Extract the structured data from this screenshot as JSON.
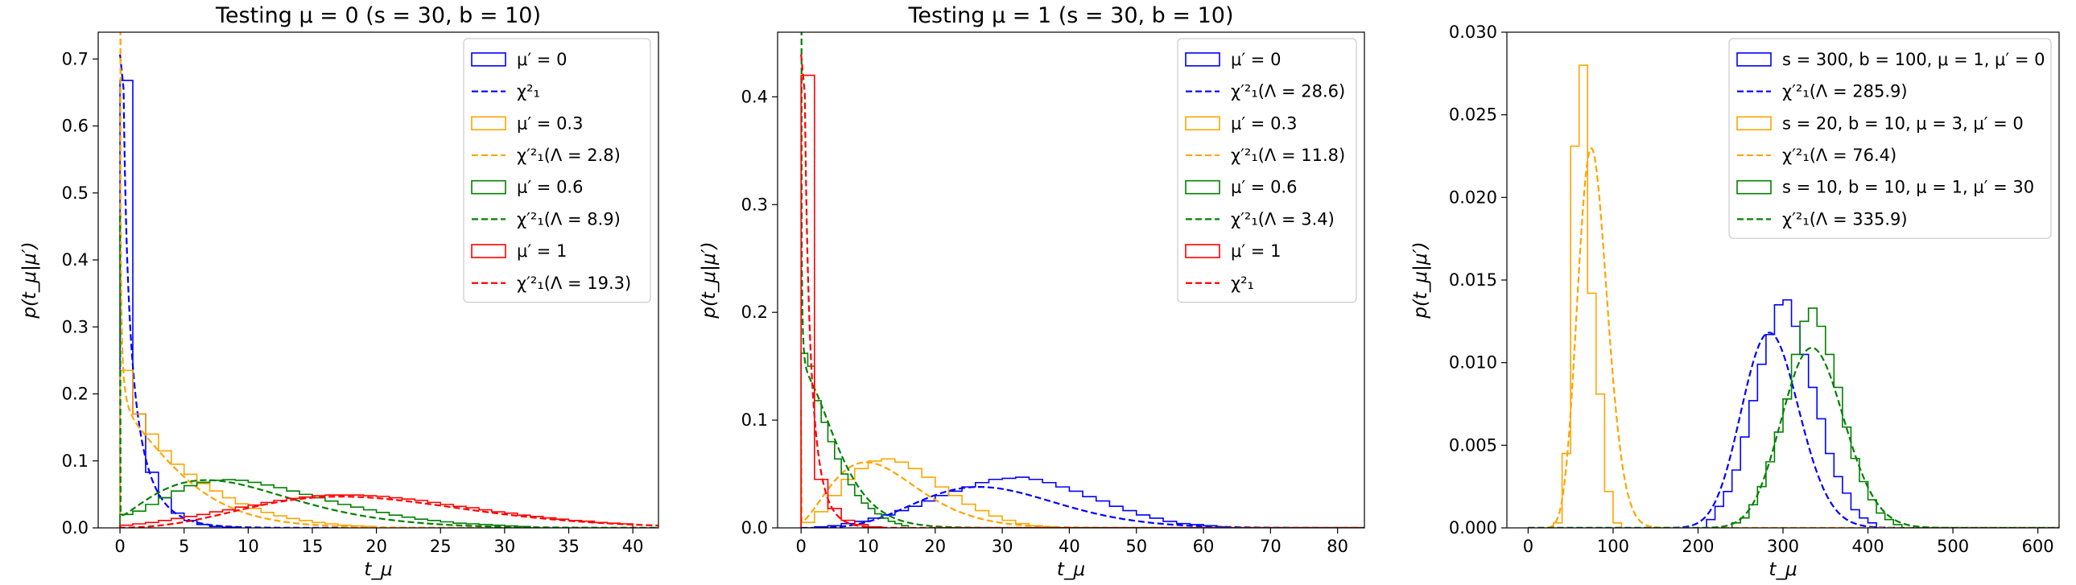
{
  "chart_data": [
    {
      "type": "line",
      "title": "Testing μ = 0 (s = 30, b = 10)",
      "xlabel": "t_μ",
      "ylabel": "p(t_μ|μ′)",
      "xlim": [
        -1.7,
        42
      ],
      "ylim": [
        0,
        0.74
      ],
      "xticks": [
        "0",
        "5",
        "10",
        "15",
        "20",
        "25",
        "30",
        "35",
        "40"
      ],
      "yticks": [
        "0.0",
        "0.1",
        "0.2",
        "0.3",
        "0.4",
        "0.5",
        "0.6",
        "0.7"
      ],
      "xtick_values": [
        0,
        5,
        10,
        15,
        20,
        25,
        30,
        35,
        40
      ],
      "ytick_values": [
        0,
        0.1,
        0.2,
        0.3,
        0.4,
        0.5,
        0.6,
        0.7
      ],
      "legend_position": "top-right",
      "series": [
        {
          "name": "μ′ = 0",
          "kind": "hist",
          "color": "#0000ff",
          "bin_start": 0,
          "bin_width": 1,
          "values": [
            0.668,
            0.17,
            0.083,
            0.045,
            0.022,
            0.011,
            0.005,
            0.002,
            0.001
          ]
        },
        {
          "name": "χ²₁",
          "kind": "curve",
          "color": "#0000ff",
          "func": "chi2",
          "lambda": 0
        },
        {
          "name": "μ′ = 0.3",
          "kind": "hist",
          "color": "#ffa500",
          "bin_start": 0,
          "bin_width": 1,
          "values": [
            0.235,
            0.17,
            0.14,
            0.115,
            0.095,
            0.08,
            0.066,
            0.055,
            0.045,
            0.036,
            0.029,
            0.023,
            0.018,
            0.014,
            0.011,
            0.008,
            0.006,
            0.004,
            0.003,
            0.002
          ]
        },
        {
          "name": "χ′²₁(Λ = 2.8)",
          "kind": "curve",
          "color": "#ffa500",
          "func": "ncchi2",
          "lambda": 2.8
        },
        {
          "name": "μ′ = 0.6",
          "kind": "hist",
          "color": "#008000",
          "bin_start": 0,
          "bin_width": 1,
          "values": [
            0.02,
            0.025,
            0.035,
            0.045,
            0.055,
            0.063,
            0.068,
            0.071,
            0.072,
            0.071,
            0.068,
            0.064,
            0.06,
            0.055,
            0.05,
            0.045,
            0.04,
            0.035,
            0.031,
            0.027,
            0.023,
            0.019,
            0.016,
            0.013,
            0.011,
            0.009,
            0.007,
            0.006,
            0.005,
            0.004,
            0.003,
            0.002
          ]
        },
        {
          "name": "χ′²₁(Λ = 8.9)",
          "kind": "curve",
          "color": "#008000",
          "func": "ncchi2",
          "lambda": 8.9
        },
        {
          "name": "μ′ = 1",
          "kind": "hist",
          "color": "#ff0000",
          "bin_start": 0,
          "bin_width": 1,
          "values": [
            0.004,
            0.006,
            0.008,
            0.011,
            0.014,
            0.017,
            0.02,
            0.024,
            0.027,
            0.031,
            0.034,
            0.038,
            0.041,
            0.044,
            0.046,
            0.048,
            0.049,
            0.049,
            0.049,
            0.048,
            0.047,
            0.045,
            0.043,
            0.041,
            0.038,
            0.035,
            0.032,
            0.03,
            0.027,
            0.024,
            0.022,
            0.019,
            0.017,
            0.015,
            0.013,
            0.011,
            0.01,
            0.008,
            0.007,
            0.006
          ]
        },
        {
          "name": "χ′²₁(Λ = 19.3)",
          "kind": "curve",
          "color": "#ff0000",
          "func": "ncchi2",
          "lambda": 19.3
        }
      ]
    },
    {
      "type": "line",
      "title": "Testing μ = 1 (s = 30, b = 10)",
      "xlabel": "t_μ",
      "ylabel": "p(t_μ|μ′)",
      "xlim": [
        -3.5,
        84
      ],
      "ylim": [
        0,
        0.46
      ],
      "xticks": [
        "0",
        "10",
        "20",
        "30",
        "40",
        "50",
        "60",
        "70",
        "80"
      ],
      "yticks": [
        "0.0",
        "0.1",
        "0.2",
        "0.3",
        "0.4"
      ],
      "xtick_values": [
        0,
        10,
        20,
        30,
        40,
        50,
        60,
        70,
        80
      ],
      "ytick_values": [
        0,
        0.1,
        0.2,
        0.3,
        0.4
      ],
      "legend_position": "top-right",
      "series": [
        {
          "name": "μ′ = 0",
          "kind": "hist",
          "color": "#0000ff",
          "bin_start": 0,
          "bin_width": 2,
          "values": [
            0,
            0.001,
            0.002,
            0.004,
            0.006,
            0.009,
            0.012,
            0.016,
            0.02,
            0.025,
            0.03,
            0.034,
            0.038,
            0.042,
            0.045,
            0.046,
            0.047,
            0.045,
            0.042,
            0.038,
            0.034,
            0.029,
            0.025,
            0.02,
            0.016,
            0.012,
            0.009,
            0.006,
            0.004,
            0.003,
            0.002,
            0.001
          ]
        },
        {
          "name": "χ′²₁(Λ = 28.6)",
          "kind": "curve",
          "color": "#0000ff",
          "func": "ncchi2",
          "lambda": 28.6
        },
        {
          "name": "μ′ = 0.3",
          "kind": "hist",
          "color": "#ffa500",
          "bin_start": 0,
          "bin_width": 2,
          "values": [
            0.005,
            0.015,
            0.03,
            0.045,
            0.055,
            0.062,
            0.064,
            0.061,
            0.055,
            0.047,
            0.038,
            0.03,
            0.022,
            0.016,
            0.011,
            0.007,
            0.004,
            0.002,
            0.001
          ]
        },
        {
          "name": "χ′²₁(Λ = 11.8)",
          "kind": "curve",
          "color": "#ffa500",
          "func": "ncchi2",
          "lambda": 11.8
        },
        {
          "name": "μ′ = 0.6",
          "kind": "hist",
          "color": "#008000",
          "bin_start": 0,
          "bin_width": 1,
          "values": [
            0.162,
            0.15,
            0.118,
            0.098,
            0.08,
            0.064,
            0.05,
            0.04,
            0.03,
            0.023,
            0.018,
            0.013,
            0.009,
            0.006,
            0.004,
            0.002
          ]
        },
        {
          "name": "χ′²₁(Λ = 3.4)",
          "kind": "curve",
          "color": "#008000",
          "func": "ncchi2",
          "lambda": 3.4
        },
        {
          "name": "μ′ = 1",
          "kind": "hist",
          "color": "#ff0000",
          "bin_start": 0,
          "bin_width": 2,
          "values": [
            0.42,
            0.045,
            0.018,
            0.007,
            0.003,
            0.001
          ]
        },
        {
          "name": "χ²₁",
          "kind": "curve",
          "color": "#ff0000",
          "func": "chi2",
          "lambda": 0
        }
      ]
    },
    {
      "type": "line",
      "title": "",
      "xlabel": "t_μ",
      "ylabel": "p(t_μ|μ′)",
      "xlim": [
        -25,
        625
      ],
      "ylim": [
        0,
        0.03
      ],
      "xticks": [
        "0",
        "100",
        "200",
        "300",
        "400",
        "500",
        "600"
      ],
      "yticks": [
        "0.000",
        "0.005",
        "0.010",
        "0.015",
        "0.020",
        "0.025",
        "0.030"
      ],
      "xtick_values": [
        0,
        100,
        200,
        300,
        400,
        500,
        600
      ],
      "ytick_values": [
        0,
        0.005,
        0.01,
        0.015,
        0.02,
        0.025,
        0.03
      ],
      "legend_position": "top-right",
      "series": [
        {
          "name": "s = 300, b = 100, μ = 1, μ′ = 0",
          "kind": "hist",
          "color": "#0000ff",
          "bin_start": 210,
          "bin_width": 10,
          "values": [
            0.0005,
            0.0013,
            0.0022,
            0.0035,
            0.0055,
            0.0077,
            0.0099,
            0.0117,
            0.0135,
            0.0138,
            0.0122,
            0.0105,
            0.0085,
            0.0066,
            0.0045,
            0.0031,
            0.0021,
            0.0011,
            0.0006,
            0.0003
          ]
        },
        {
          "name": "χ′²₁(Λ = 285.9)",
          "kind": "curve",
          "color": "#0000ff",
          "func": "ncchi2",
          "lambda": 285.9
        },
        {
          "name": "s = 20, b = 10, μ = 3, μ′ = 0",
          "kind": "hist",
          "color": "#ffa500",
          "bin_start": 30,
          "bin_width": 10,
          "values": [
            0.0003,
            0.0045,
            0.0231,
            0.028,
            0.0142,
            0.0081,
            0.0022,
            0.0003
          ]
        },
        {
          "name": "χ′²₁(Λ = 76.4)",
          "kind": "curve",
          "color": "#ffa500",
          "func": "ncchi2",
          "lambda": 76.4
        },
        {
          "name": "s = 10, b = 10, μ = 1, μ′ = 30",
          "kind": "hist",
          "color": "#008000",
          "bin_start": 240,
          "bin_width": 10,
          "values": [
            0.0003,
            0.0006,
            0.0014,
            0.0025,
            0.004,
            0.0058,
            0.0078,
            0.0105,
            0.0125,
            0.0133,
            0.0122,
            0.0105,
            0.0085,
            0.0061,
            0.0042,
            0.0028,
            0.0017,
            0.0009,
            0.0005,
            0.0002
          ]
        },
        {
          "name": "χ′²₁(Λ = 335.9)",
          "kind": "curve",
          "color": "#008000",
          "func": "ncchi2",
          "lambda": 335.9
        }
      ]
    }
  ]
}
